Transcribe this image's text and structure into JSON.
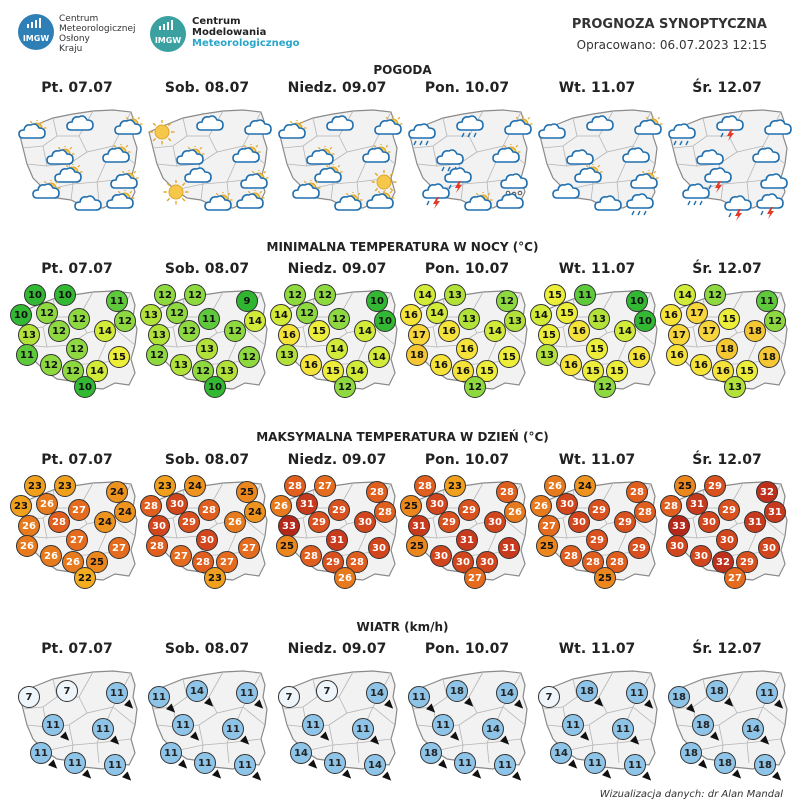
{
  "header": {
    "logo1_line1": "Centrum",
    "logo1_line2": "Meteorologicznej",
    "logo1_line3": "Osłony",
    "logo1_line4": "Kraju",
    "logo1_badge": "IMGW",
    "logo2_line1": "Centrum",
    "logo2_line2": "Modelowania",
    "logo2_line3": "Meteorologicznego",
    "logo2_badge": "IMGW",
    "title": "PROGNOZA SYNOPTYCZNA",
    "subtitle": "Opracowano: 06.07.2023 12:15"
  },
  "days": [
    "Pt. 07.07",
    "Sob. 08.07",
    "Niedz. 09.07",
    "Pon. 10.07",
    "Wt. 11.07",
    "Śr. 12.07"
  ],
  "sections": {
    "weather": "POGODA",
    "tmin": "MINIMALNA TEMPERATURA W NOCY (°C)",
    "tmax": "MAKSYMALNA TEMPERATURA W DZIEŃ (°C)",
    "wind": "WIATR (km/h)"
  },
  "weather_icons": [
    [
      "partly-cloudy",
      "cloud",
      "partly-cloudy",
      "partly-cloudy",
      "partly-cloudy",
      "partly-cloudy",
      "partly-cloudy",
      "partly-cloudy",
      "cloud",
      "partly-cloudy"
    ],
    [
      "sun",
      "cloud",
      "cloud",
      "partly-cloudy",
      "partly-cloudy",
      "cloud",
      "partly-cloudy",
      "sun",
      "partly-cloudy",
      "partly-cloudy"
    ],
    [
      "partly-cloudy",
      "cloud",
      "partly-cloudy",
      "partly-cloudy",
      "partly-cloudy",
      "partly-cloudy",
      "sun",
      "partly-cloudy",
      "partly-cloudy",
      "partly-cloudy"
    ],
    [
      "cloud-rain",
      "cloud-rain",
      "partly-cloudy",
      "cloud-rain",
      "partly-cloudy",
      "storm",
      "hail",
      "storm",
      "partly-cloudy",
      "cloud"
    ],
    [
      "cloud",
      "cloud",
      "partly-cloudy",
      "cloud",
      "cloud",
      "partly-cloudy",
      "partly-cloudy",
      "cloud",
      "cloud",
      "cloud-rain"
    ],
    [
      "cloud-rain",
      "storm",
      "cloud",
      "cloud",
      "cloud",
      "storm",
      "cloud",
      "cloud-rain",
      "storm",
      "storm"
    ]
  ],
  "tmin": [
    [
      10,
      10,
      11,
      10,
      12,
      12,
      12,
      13,
      12,
      14,
      11,
      12,
      15,
      12,
      12,
      14,
      10
    ],
    [
      12,
      12,
      9,
      13,
      12,
      11,
      14,
      13,
      12,
      12,
      12,
      13,
      12,
      13,
      12,
      13,
      10
    ],
    [
      12,
      12,
      10,
      14,
      12,
      12,
      10,
      16,
      15,
      14,
      13,
      14,
      14,
      16,
      15,
      14,
      12
    ],
    [
      14,
      13,
      12,
      16,
      14,
      13,
      13,
      17,
      16,
      14,
      18,
      16,
      15,
      16,
      16,
      15,
      12
    ],
    [
      15,
      11,
      10,
      14,
      15,
      13,
      10,
      15,
      16,
      14,
      13,
      15,
      16,
      16,
      15,
      15,
      12
    ],
    [
      14,
      12,
      11,
      16,
      17,
      15,
      12,
      17,
      17,
      18,
      16,
      18,
      18,
      16,
      16,
      15,
      13
    ]
  ],
  "tmax": [
    [
      23,
      23,
      24,
      23,
      26,
      27,
      24,
      26,
      28,
      24,
      26,
      27,
      27,
      26,
      26,
      25,
      22
    ],
    [
      23,
      24,
      25,
      28,
      30,
      28,
      24,
      30,
      29,
      26,
      28,
      30,
      27,
      27,
      28,
      27,
      23
    ],
    [
      28,
      27,
      28,
      26,
      31,
      29,
      28,
      33,
      29,
      30,
      25,
      31,
      30,
      28,
      29,
      28,
      26
    ],
    [
      28,
      23,
      28,
      25,
      30,
      29,
      26,
      31,
      29,
      30,
      25,
      31,
      31,
      30,
      30,
      30,
      27
    ],
    [
      26,
      24,
      28,
      26,
      30,
      29,
      28,
      27,
      30,
      29,
      25,
      29,
      29,
      28,
      28,
      28,
      25
    ],
    [
      25,
      29,
      32,
      28,
      31,
      29,
      31,
      33,
      30,
      31,
      30,
      30,
      30,
      30,
      32,
      29,
      27
    ]
  ],
  "wind": [
    [
      7,
      7,
      11,
      11,
      11,
      11,
      11,
      11
    ],
    [
      11,
      14,
      11,
      11,
      11,
      11,
      11,
      11
    ],
    [
      7,
      7,
      14,
      11,
      11,
      14,
      11,
      14
    ],
    [
      11,
      18,
      14,
      11,
      14,
      18,
      11,
      11
    ],
    [
      7,
      18,
      11,
      11,
      11,
      14,
      11,
      11
    ],
    [
      18,
      18,
      11,
      18,
      14,
      18,
      18,
      18
    ]
  ],
  "footer": "Wizualizacja danych: dr Alan Mandal",
  "colors": {
    "t9": "#2fb52f",
    "t10": "#33b833",
    "t11": "#5ec93a",
    "t12": "#8ed940",
    "t13": "#b2e23a",
    "t14": "#d2ea38",
    "t15": "#ecee3a",
    "t16": "#f6e33a",
    "t17": "#f8d53a",
    "t18": "#f5c733",
    "t22": "#f3ad1e",
    "t23": "#f1a01e",
    "t24": "#ee931e",
    "t25": "#ec871e",
    "t26": "#e87a1e",
    "t27": "#e56c1e",
    "t28": "#e05e1e",
    "t29": "#d9511e",
    "t30": "#d2461e",
    "t31": "#c83a1e",
    "t32": "#bf301c",
    "t33": "#b4281a",
    "wind_light": "#eef5fb",
    "wind_mid": "#8ec4e8",
    "wind_strong": "#6fb3e0",
    "map_fill": "#f2f2f2",
    "map_border": "#8a8a8a"
  }
}
